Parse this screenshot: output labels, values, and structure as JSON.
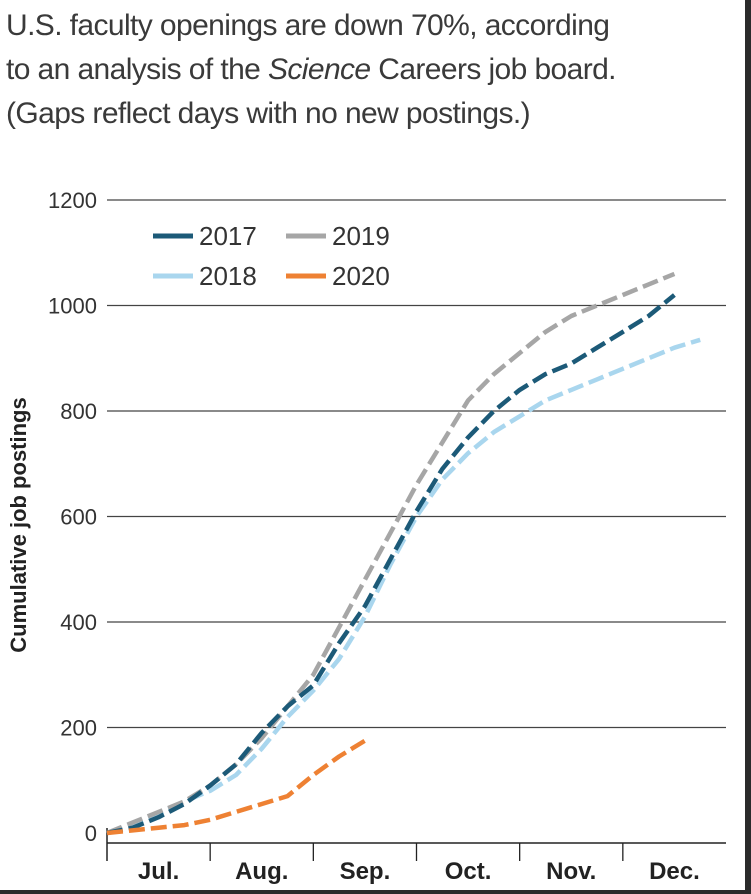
{
  "caption": {
    "line1": "U.S. faculty openings are down 70%, according",
    "line2_pre": "to an analysis of the ",
    "line2_em": "Science",
    "line2_post": " Careers job board.",
    "line3": "(Gaps reflect days with no new postings.)"
  },
  "chart_data": {
    "type": "line",
    "title": "U.S. faculty openings are down 70%, according to an analysis of the Science Careers job board. (Gaps reflect days with no new postings.)",
    "xlabel": "",
    "ylabel": "Cumulative job postings",
    "ylim": [
      0,
      1200
    ],
    "yticks": [
      0,
      200,
      400,
      600,
      800,
      1000,
      1200
    ],
    "xlim": [
      0,
      6
    ],
    "x_unit": "months since start of July",
    "categories": [
      "Jul.",
      "Aug.",
      "Sep.",
      "Oct.",
      "Nov.",
      "Dec."
    ],
    "grid": "horizontal",
    "legend_position": "top-left",
    "series": [
      {
        "name": "2018",
        "color": "#a9d6ee",
        "x": [
          0,
          0.25,
          0.5,
          0.75,
          1,
          1.25,
          1.5,
          1.75,
          2,
          2.25,
          2.5,
          2.75,
          3,
          3.25,
          3.5,
          3.75,
          4,
          4.25,
          4.5,
          4.75,
          5,
          5.25,
          5.5,
          5.75
        ],
        "values": [
          0,
          15,
          35,
          60,
          80,
          110,
          160,
          220,
          270,
          330,
          410,
          510,
          600,
          670,
          720,
          760,
          790,
          820,
          840,
          860,
          880,
          900,
          920,
          935
        ]
      },
      {
        "name": "2019",
        "color": "#a6a6a6",
        "x": [
          0,
          0.25,
          0.5,
          0.75,
          1,
          1.25,
          1.5,
          1.75,
          2,
          2.25,
          2.5,
          2.75,
          3,
          3.25,
          3.5,
          3.75,
          4,
          4.25,
          4.5,
          4.75,
          5,
          5.25,
          5.5
        ],
        "values": [
          0,
          20,
          40,
          60,
          90,
          130,
          180,
          240,
          300,
          390,
          480,
          570,
          660,
          740,
          820,
          870,
          910,
          950,
          980,
          1000,
          1020,
          1040,
          1060
        ]
      },
      {
        "name": "2017",
        "color": "#1c5a78",
        "x": [
          0,
          0.25,
          0.5,
          0.75,
          1,
          1.25,
          1.5,
          1.75,
          2,
          2.25,
          2.5,
          2.75,
          3,
          3.25,
          3.5,
          3.75,
          4,
          4.25,
          4.5,
          4.75,
          5,
          5.25,
          5.5
        ],
        "values": [
          0,
          10,
          30,
          55,
          90,
          130,
          190,
          240,
          280,
          360,
          430,
          520,
          610,
          690,
          750,
          800,
          840,
          870,
          890,
          920,
          950,
          980,
          1020
        ]
      },
      {
        "name": "2020",
        "color": "#ee8133",
        "x": [
          0,
          0.25,
          0.5,
          0.75,
          1,
          1.25,
          1.5,
          1.75,
          2,
          2.25,
          2.5
        ],
        "values": [
          0,
          5,
          10,
          15,
          25,
          40,
          55,
          70,
          110,
          145,
          175
        ]
      }
    ]
  },
  "legend": {
    "row1": [
      "2017",
      "2019"
    ],
    "row2": [
      "2018",
      "2020"
    ]
  }
}
